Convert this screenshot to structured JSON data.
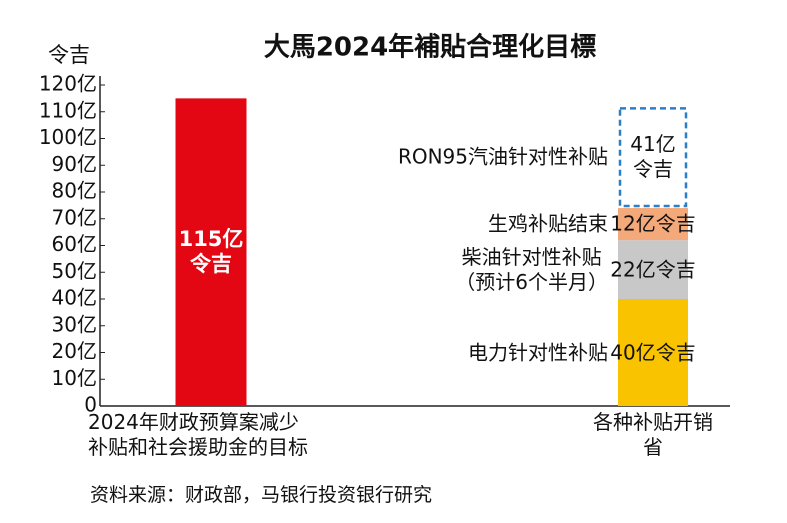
{
  "chart_data": {
    "type": "bar",
    "stacked": true,
    "title": "大馬2024年補貼合理化目標",
    "y_unit_label": "令吉",
    "categories": [
      "2024年财政预算案减少\n补贴和社会援助金的目标",
      "各种补贴开销省"
    ],
    "ylim": [
      0,
      120
    ],
    "yticks": [
      0,
      {
        "value": 10,
        "label": "10亿"
      },
      {
        "value": 20,
        "label": "20亿"
      },
      {
        "value": 30,
        "label": "30亿"
      },
      {
        "value": 40,
        "label": "40亿"
      },
      {
        "value": 50,
        "label": "50亿"
      },
      {
        "value": 60,
        "label": "60亿"
      },
      {
        "value": 70,
        "label": "70亿"
      },
      {
        "value": 80,
        "label": "80亿"
      },
      {
        "value": 90,
        "label": "90亿"
      },
      {
        "value": 100,
        "label": "100亿"
      },
      {
        "value": 110,
        "label": "110亿"
      },
      {
        "value": 120,
        "label": "120亿"
      }
    ],
    "series": [
      {
        "color": "#e30613",
        "values": [
          115,
          null
        ],
        "value_labels": [
          "115亿\n令吉",
          null
        ]
      },
      {
        "name": "电力针对性补贴",
        "color": "#f9c300",
        "values": [
          null,
          40
        ],
        "value_labels": [
          null,
          "40亿令吉"
        ]
      },
      {
        "name": "柴油针对性补贴\n（预计6个半月）",
        "color": "#c8c8c8",
        "values": [
          null,
          22
        ],
        "value_labels": [
          null,
          "22亿令吉"
        ]
      },
      {
        "name": "生鸡补贴结束",
        "color": "#f4a97a",
        "values": [
          null,
          12
        ],
        "value_labels": [
          null,
          "12亿令吉"
        ]
      },
      {
        "name": "RON95汽油针对性补贴",
        "color": "#2a7fc9",
        "style": "dashed",
        "values": [
          null,
          41
        ],
        "value_labels": [
          null,
          "41亿\n令吉"
        ]
      }
    ],
    "source": "资料来源：财政部，马银行投资银行研究"
  }
}
